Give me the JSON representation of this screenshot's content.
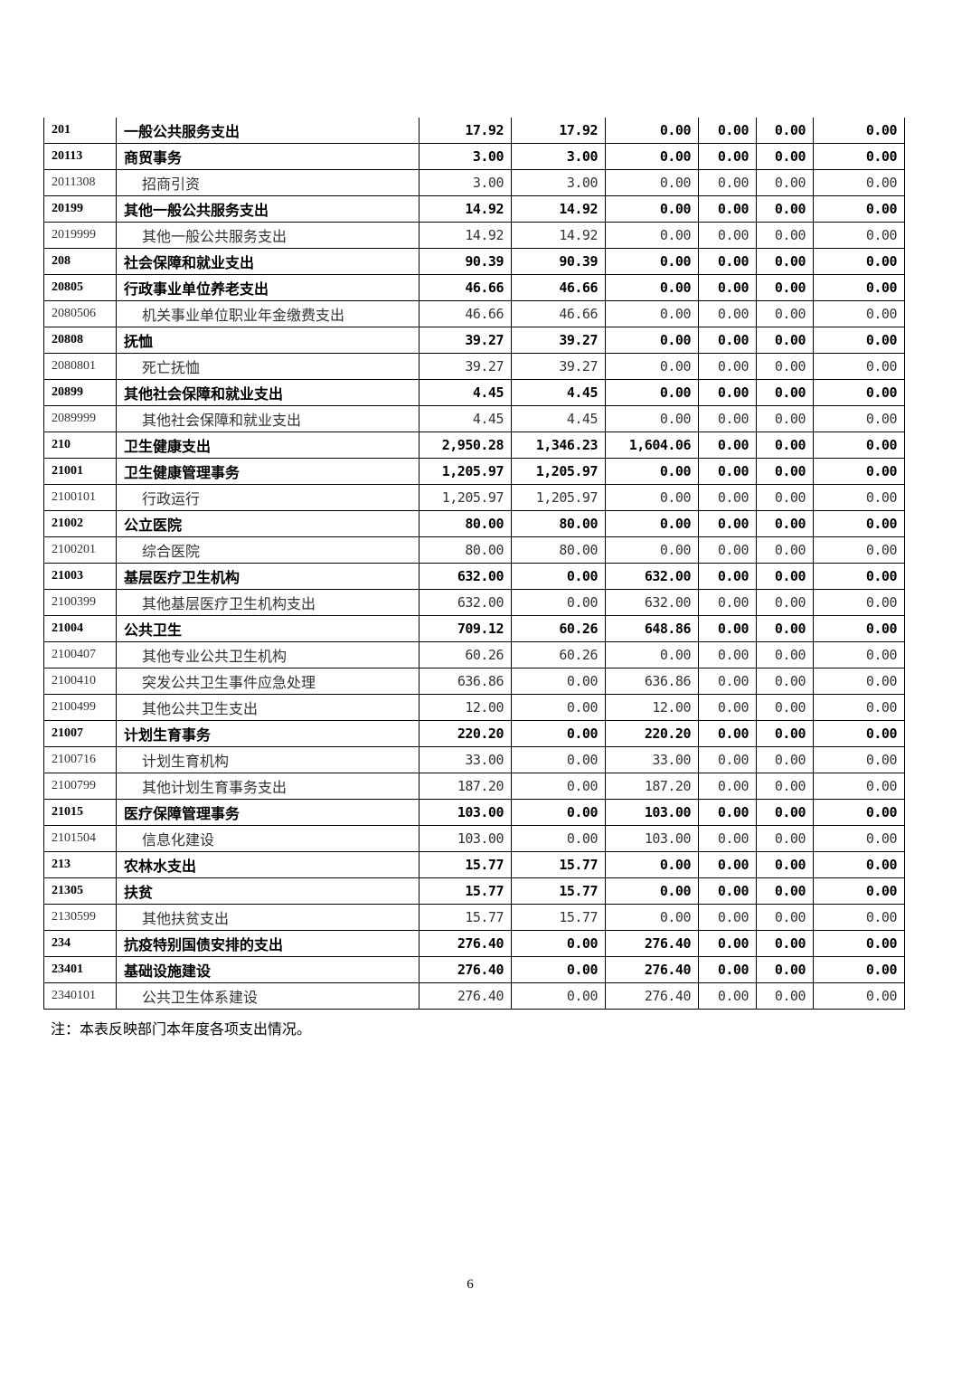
{
  "table": {
    "rows": [
      [
        "201",
        "一般公共服务支出",
        "17.92",
        "17.92",
        "0.00",
        "0.00",
        "0.00",
        "0.00"
      ],
      [
        "20113",
        "商贸事务",
        "3.00",
        "3.00",
        "0.00",
        "0.00",
        "0.00",
        "0.00"
      ],
      [
        "2011308",
        "招商引资",
        "3.00",
        "3.00",
        "0.00",
        "0.00",
        "0.00",
        "0.00"
      ],
      [
        "20199",
        "其他一般公共服务支出",
        "14.92",
        "14.92",
        "0.00",
        "0.00",
        "0.00",
        "0.00"
      ],
      [
        "2019999",
        "其他一般公共服务支出",
        "14.92",
        "14.92",
        "0.00",
        "0.00",
        "0.00",
        "0.00"
      ],
      [
        "208",
        "社会保障和就业支出",
        "90.39",
        "90.39",
        "0.00",
        "0.00",
        "0.00",
        "0.00"
      ],
      [
        "20805",
        "行政事业单位养老支出",
        "46.66",
        "46.66",
        "0.00",
        "0.00",
        "0.00",
        "0.00"
      ],
      [
        "2080506",
        "机关事业单位职业年金缴费支出",
        "46.66",
        "46.66",
        "0.00",
        "0.00",
        "0.00",
        "0.00"
      ],
      [
        "20808",
        "抚恤",
        "39.27",
        "39.27",
        "0.00",
        "0.00",
        "0.00",
        "0.00"
      ],
      [
        "2080801",
        "死亡抚恤",
        "39.27",
        "39.27",
        "0.00",
        "0.00",
        "0.00",
        "0.00"
      ],
      [
        "20899",
        "其他社会保障和就业支出",
        "4.45",
        "4.45",
        "0.00",
        "0.00",
        "0.00",
        "0.00"
      ],
      [
        "2089999",
        "其他社会保障和就业支出",
        "4.45",
        "4.45",
        "0.00",
        "0.00",
        "0.00",
        "0.00"
      ],
      [
        "210",
        "卫生健康支出",
        "2,950.28",
        "1,346.23",
        "1,604.06",
        "0.00",
        "0.00",
        "0.00"
      ],
      [
        "21001",
        "卫生健康管理事务",
        "1,205.97",
        "1,205.97",
        "0.00",
        "0.00",
        "0.00",
        "0.00"
      ],
      [
        "2100101",
        "行政运行",
        "1,205.97",
        "1,205.97",
        "0.00",
        "0.00",
        "0.00",
        "0.00"
      ],
      [
        "21002",
        "公立医院",
        "80.00",
        "80.00",
        "0.00",
        "0.00",
        "0.00",
        "0.00"
      ],
      [
        "2100201",
        "综合医院",
        "80.00",
        "80.00",
        "0.00",
        "0.00",
        "0.00",
        "0.00"
      ],
      [
        "21003",
        "基层医疗卫生机构",
        "632.00",
        "0.00",
        "632.00",
        "0.00",
        "0.00",
        "0.00"
      ],
      [
        "2100399",
        "其他基层医疗卫生机构支出",
        "632.00",
        "0.00",
        "632.00",
        "0.00",
        "0.00",
        "0.00"
      ],
      [
        "21004",
        "公共卫生",
        "709.12",
        "60.26",
        "648.86",
        "0.00",
        "0.00",
        "0.00"
      ],
      [
        "2100407",
        "其他专业公共卫生机构",
        "60.26",
        "60.26",
        "0.00",
        "0.00",
        "0.00",
        "0.00"
      ],
      [
        "2100410",
        "突发公共卫生事件应急处理",
        "636.86",
        "0.00",
        "636.86",
        "0.00",
        "0.00",
        "0.00"
      ],
      [
        "2100499",
        "其他公共卫生支出",
        "12.00",
        "0.00",
        "12.00",
        "0.00",
        "0.00",
        "0.00"
      ],
      [
        "21007",
        "计划生育事务",
        "220.20",
        "0.00",
        "220.20",
        "0.00",
        "0.00",
        "0.00"
      ],
      [
        "2100716",
        "计划生育机构",
        "33.00",
        "0.00",
        "33.00",
        "0.00",
        "0.00",
        "0.00"
      ],
      [
        "2100799",
        "其他计划生育事务支出",
        "187.20",
        "0.00",
        "187.20",
        "0.00",
        "0.00",
        "0.00"
      ],
      [
        "21015",
        "医疗保障管理事务",
        "103.00",
        "0.00",
        "103.00",
        "0.00",
        "0.00",
        "0.00"
      ],
      [
        "2101504",
        "信息化建设",
        "103.00",
        "0.00",
        "103.00",
        "0.00",
        "0.00",
        "0.00"
      ],
      [
        "213",
        "农林水支出",
        "15.77",
        "15.77",
        "0.00",
        "0.00",
        "0.00",
        "0.00"
      ],
      [
        "21305",
        "扶贫",
        "15.77",
        "15.77",
        "0.00",
        "0.00",
        "0.00",
        "0.00"
      ],
      [
        "2130599",
        "其他扶贫支出",
        "15.77",
        "15.77",
        "0.00",
        "0.00",
        "0.00",
        "0.00"
      ],
      [
        "234",
        "抗疫特别国债安排的支出",
        "276.40",
        "0.00",
        "276.40",
        "0.00",
        "0.00",
        "0.00"
      ],
      [
        "23401",
        "基础设施建设",
        "276.40",
        "0.00",
        "276.40",
        "0.00",
        "0.00",
        "0.00"
      ],
      [
        "2340101",
        "公共卫生体系建设",
        "276.40",
        "0.00",
        "276.40",
        "0.00",
        "0.00",
        "0.00"
      ]
    ]
  },
  "note": "注：本表反映部门本年度各项支出情况。",
  "page_number": "6"
}
